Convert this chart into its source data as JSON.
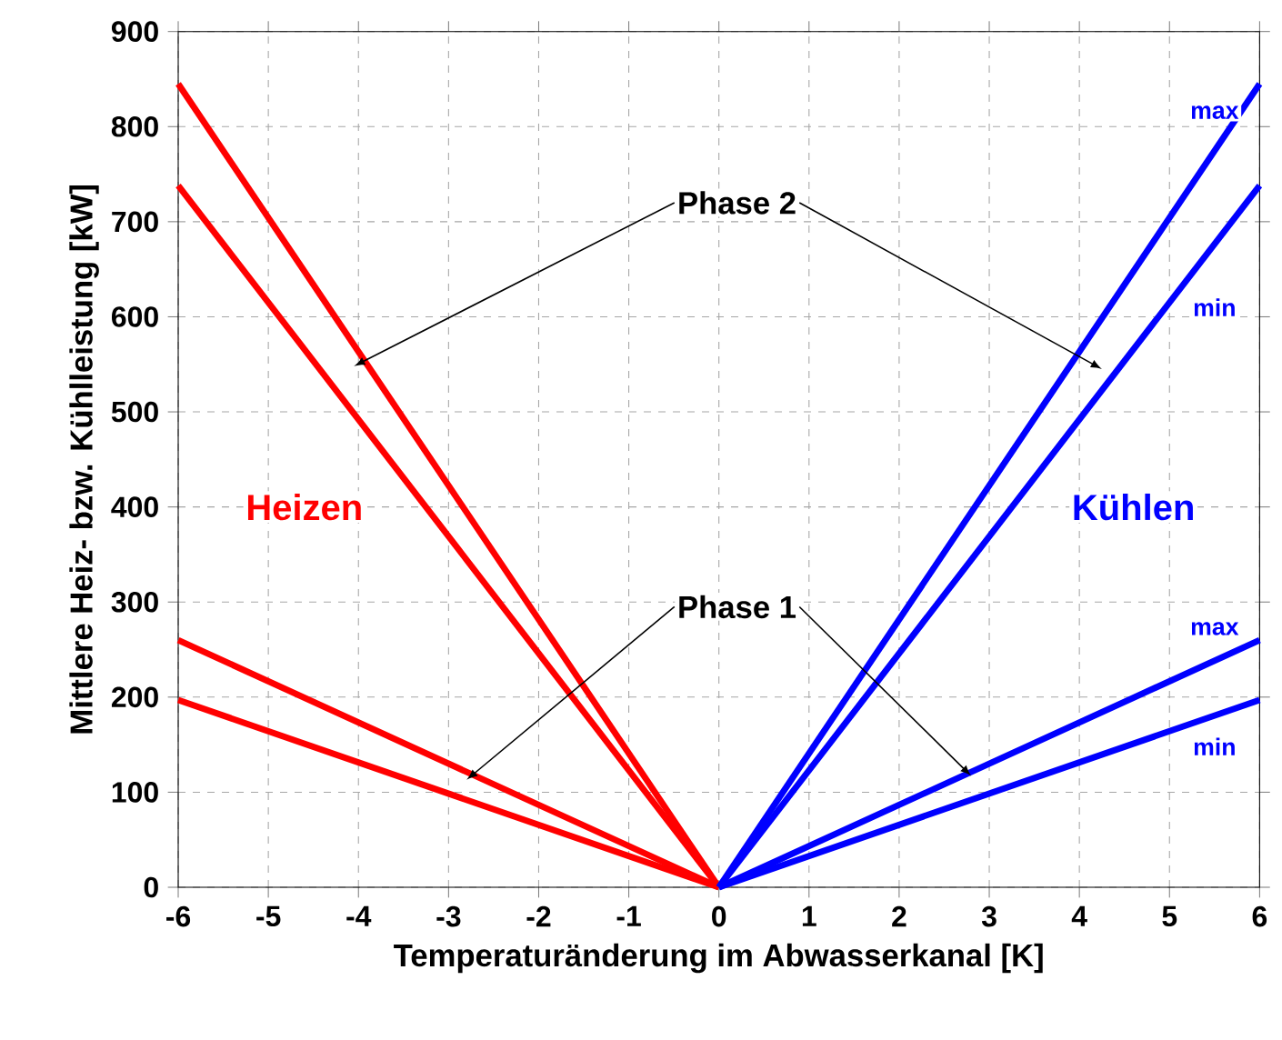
{
  "chart_data": {
    "type": "line",
    "xlabel": "Temperaturänderung im Abwasserkanal [K]",
    "ylabel": "Mittlere Heiz- bzw. Kühlleistung [kW]",
    "xlim": [
      -6,
      6
    ],
    "ylim": [
      0,
      900
    ],
    "xticks": [
      -6,
      -5,
      -4,
      -3,
      -2,
      -1,
      0,
      1,
      2,
      3,
      4,
      5,
      6
    ],
    "yticks": [
      0,
      100,
      200,
      300,
      400,
      500,
      600,
      700,
      800,
      900
    ],
    "grid": true,
    "marker": "none",
    "line_style": "solid",
    "series": [
      {
        "color": "#ff0000",
        "x": [
          -6,
          0
        ],
        "values": [
          845,
          0
        ]
      },
      {
        "color": "#ff0000",
        "x": [
          -6,
          0
        ],
        "values": [
          738,
          0
        ]
      },
      {
        "color": "#ff0000",
        "x": [
          -6,
          0
        ],
        "values": [
          260,
          0
        ]
      },
      {
        "color": "#ff0000",
        "x": [
          -6,
          0
        ],
        "values": [
          197,
          0
        ]
      },
      {
        "color": "#0000ff",
        "x": [
          0,
          6
        ],
        "values": [
          0,
          845
        ]
      },
      {
        "color": "#0000ff",
        "x": [
          0,
          6
        ],
        "values": [
          0,
          738
        ]
      },
      {
        "color": "#0000ff",
        "x": [
          0,
          6
        ],
        "values": [
          0,
          260
        ]
      },
      {
        "color": "#0000ff",
        "x": [
          0,
          6
        ],
        "values": [
          0,
          197
        ]
      }
    ],
    "annotations": [
      {
        "text": "Phase 2",
        "x": -4.05,
        "y": 548
      },
      {
        "text": "Phase 1",
        "x": -2.8,
        "y": 113
      },
      "Heizen",
      "Kühlen",
      "max",
      "min",
      "max",
      "min"
    ]
  }
}
